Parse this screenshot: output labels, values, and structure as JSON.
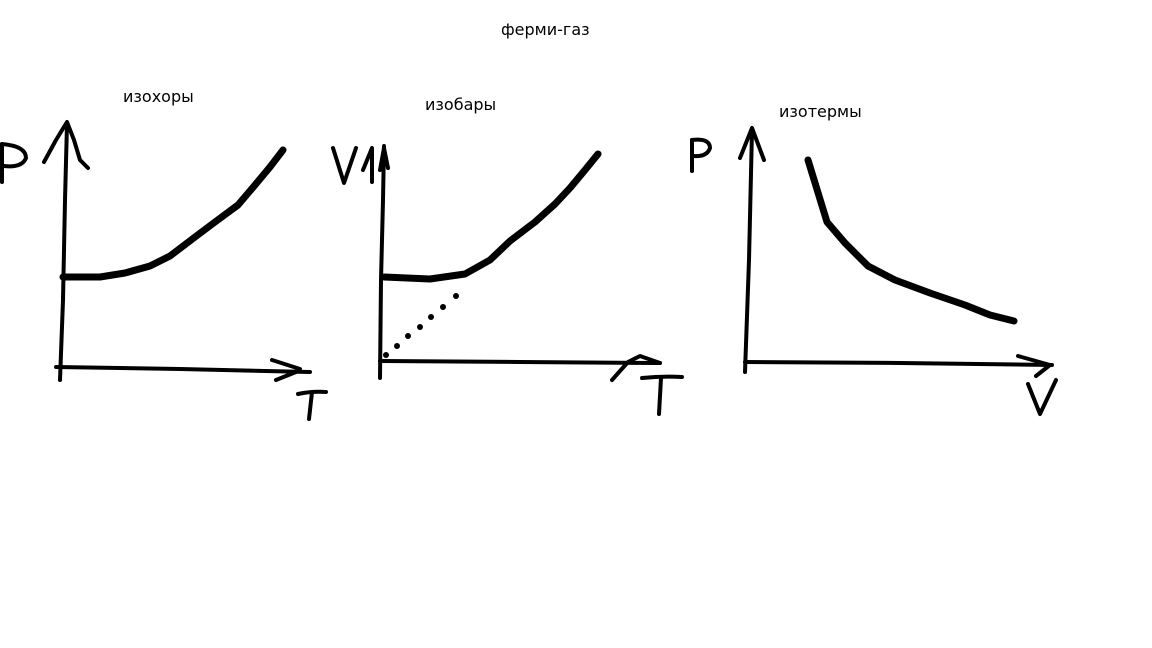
{
  "title": "ферми-газ",
  "panels": [
    {
      "id": "isochores",
      "title": "изохоры",
      "y_axis_label": "P",
      "x_axis_label": "T",
      "curve": "rising from a flat nonzero intercept"
    },
    {
      "id": "isobars",
      "title": "изобары",
      "y_axis_label": "V",
      "x_axis_label": "T",
      "curve": "rising from a flat nonzero intercept",
      "extra": "dotted straight line from origin"
    },
    {
      "id": "isotherms",
      "title": "изотермы",
      "y_axis_label": "P",
      "x_axis_label": "V",
      "curve": "decreasing"
    }
  ],
  "colors": {
    "ink": "#000000",
    "background": "#ffffff"
  }
}
